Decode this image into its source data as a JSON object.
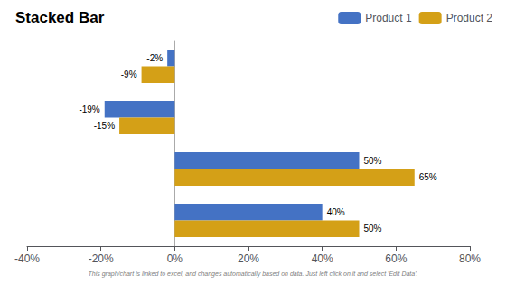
{
  "chart_data": {
    "type": "bar",
    "orientation": "horizontal",
    "title": "Stacked Bar",
    "categories": [
      null,
      null,
      null,
      null
    ],
    "series": [
      {
        "name": "Product 1",
        "color": "#4472C4",
        "values": [
          -2,
          -19,
          50,
          40
        ],
        "value_labels": [
          "-2%",
          "-19%",
          "50%",
          "40%"
        ]
      },
      {
        "name": "Product 2",
        "color": "#D4A017",
        "values": [
          -9,
          -15,
          65,
          50
        ],
        "value_labels": [
          "-9%",
          "-15%",
          "65%",
          "50%"
        ]
      }
    ],
    "xlim": [
      -40,
      80
    ],
    "xticks": [
      {
        "value": -40,
        "label": "-40%"
      },
      {
        "value": -20,
        "label": "-20%"
      },
      {
        "value": 0,
        "label": "0%"
      },
      {
        "value": 20,
        "label": "20%"
      },
      {
        "value": 40,
        "label": "40%"
      },
      {
        "value": 60,
        "label": "60%"
      },
      {
        "value": 80,
        "label": "80%"
      }
    ],
    "grid": false,
    "legend": "top right",
    "data_labels": true,
    "annotations": [
      "This graph/chart is linked to excel, and changes automatically based on data. Just left click on it and select 'Edit Data'."
    ]
  }
}
